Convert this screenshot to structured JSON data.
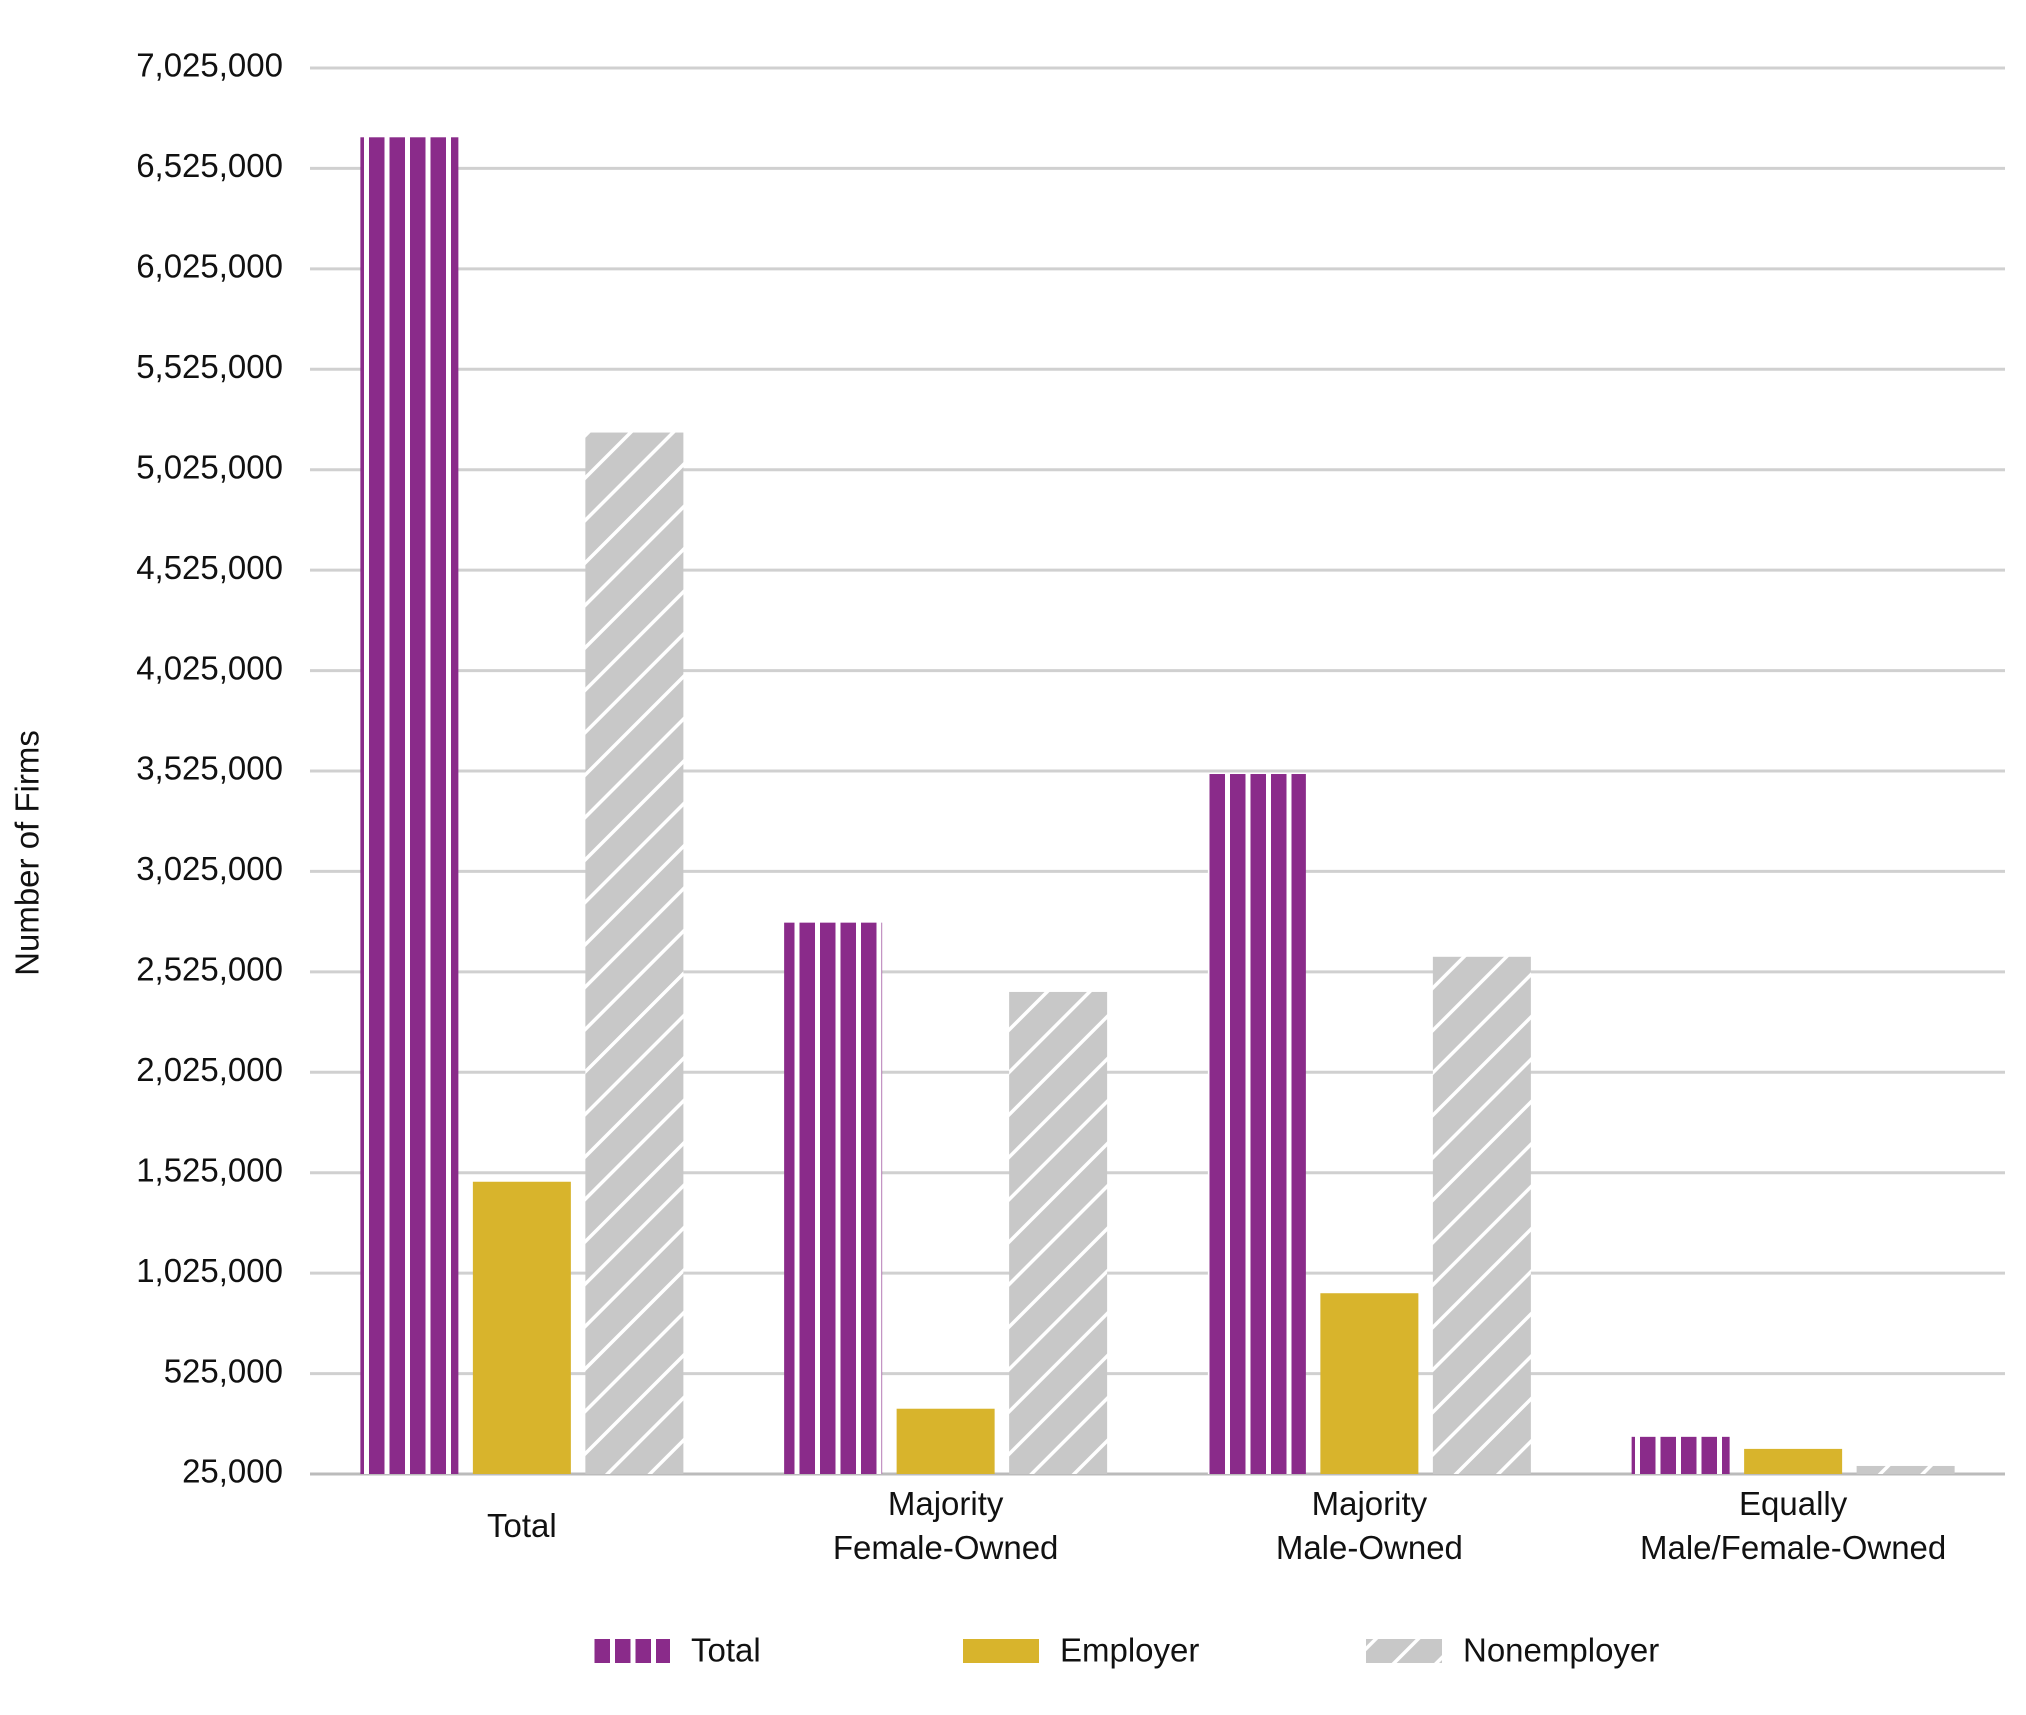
{
  "chart_data": {
    "type": "bar",
    "y_label": "Number of Firms",
    "categories": [
      "Total",
      "Majority Female-Owned",
      "Majority Male-Owned",
      "Equally Male/Female-Owned"
    ],
    "series": [
      {
        "name": "Total",
        "color": "#8a2b8a",
        "pattern": "vertical-stripes",
        "values": [
          6680000,
          2770000,
          3510000,
          210000
        ]
      },
      {
        "name": "Employer",
        "color": "#d8b42c",
        "pattern": "solid",
        "values": [
          1480000,
          350000,
          925000,
          150000
        ]
      },
      {
        "name": "Nonemployer",
        "color": "#c8c8c8",
        "pattern": "diagonal-stripes",
        "values": [
          5210000,
          2425000,
          2600000,
          65000
        ]
      }
    ],
    "ylim": [
      25000,
      7025000
    ],
    "yticks": [
      {
        "value": 25000,
        "label": "25,000"
      },
      {
        "value": 525000,
        "label": "525,000"
      },
      {
        "value": 1025000,
        "label": "1,025,000"
      },
      {
        "value": 1525000,
        "label": "1,525,000"
      },
      {
        "value": 2025000,
        "label": "2,025,000"
      },
      {
        "value": 2525000,
        "label": "2,525,000"
      },
      {
        "value": 3025000,
        "label": "3,025,000"
      },
      {
        "value": 3525000,
        "label": "3,525,000"
      },
      {
        "value": 4025000,
        "label": "4,025,000"
      },
      {
        "value": 4525000,
        "label": "4,525,000"
      },
      {
        "value": 5025000,
        "label": "5,025,000"
      },
      {
        "value": 5525000,
        "label": "5,525,000"
      },
      {
        "value": 6025000,
        "label": "6,025,000"
      },
      {
        "value": 6525000,
        "label": "6,525,000"
      },
      {
        "value": 7025000,
        "label": "7,025,000"
      }
    ],
    "grid": true,
    "legend": "bottom"
  }
}
